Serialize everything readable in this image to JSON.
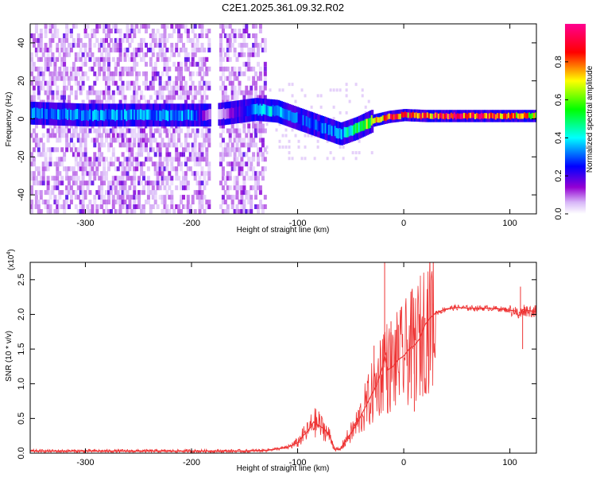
{
  "title": "C2E1.2025.361.09.32.R02",
  "chart_data": [
    {
      "type": "heatmap",
      "name": "spectrogram",
      "xlabel": "Height of straight line (km)",
      "ylabel": "Frequency (Hz)",
      "xlim": [
        -352,
        125
      ],
      "ylim": [
        -50,
        50
      ],
      "xticks": [
        -300,
        -200,
        -100,
        0,
        100
      ],
      "yticks": [
        -40,
        -20,
        0,
        20,
        40
      ],
      "xtick_labels": [
        "-300",
        "-200",
        "-100",
        "0",
        "100"
      ],
      "ytick_labels": [
        "-40",
        "-20",
        "0",
        "20",
        "40"
      ],
      "colorbar": {
        "label": "Normalized spectral amplitude",
        "range": [
          0,
          1
        ],
        "ticks": [
          0.0,
          0.2,
          0.4,
          0.6,
          0.8
        ],
        "tick_labels": [
          "0.0",
          "0.2",
          "0.4",
          "0.6",
          "0.8"
        ],
        "colors": [
          "#ffffff",
          "#9400d3",
          "#0000ff",
          "#00ffff",
          "#00ff00",
          "#ffff00",
          "#ff0000",
          "#ff00a0"
        ]
      },
      "ridge": {
        "x": [
          -352,
          -300,
          -250,
          -200,
          -180,
          -140,
          -120,
          -100,
          -80,
          -60,
          -45,
          -30,
          -15,
          0,
          20,
          60,
          100,
          125
        ],
        "frequency": [
          3,
          2,
          2,
          2,
          2,
          5,
          4,
          0,
          -4,
          -8,
          -5,
          -1,
          1,
          2,
          1.5,
          1.5,
          1.5,
          1.5
        ],
        "amplitude": [
          0.35,
          0.35,
          0.35,
          0.35,
          0.0,
          0.35,
          0.4,
          0.3,
          0.3,
          0.35,
          0.5,
          0.7,
          0.85,
          0.85,
          0.85,
          0.9,
          0.8,
          0.7
        ]
      },
      "noise_region_x": [
        -352,
        -130
      ],
      "gap_x": [
        -183,
        -175
      ]
    },
    {
      "type": "line",
      "name": "snr",
      "xlabel": "Height of straight line (km)",
      "ylabel": "SNR (10 * v/v)",
      "multiplier_label": "(x10",
      "multiplier_exponent": "4",
      "xlim": [
        -352,
        125
      ],
      "ylim": [
        0,
        27500
      ],
      "xticks": [
        -300,
        -200,
        -100,
        0,
        100
      ],
      "yticks": [
        0,
        5000,
        10000,
        15000,
        20000,
        25000
      ],
      "xtick_labels": [
        "-300",
        "-200",
        "-100",
        "0",
        "100"
      ],
      "ytick_labels": [
        "0.0",
        "0.5",
        "1.0",
        "1.5",
        "2.0",
        "2.5"
      ],
      "color": "#ee3333",
      "series": [
        {
          "name": "SNR",
          "x": [
            -352,
            -300,
            -250,
            -200,
            -150,
            -130,
            -110,
            -100,
            -95,
            -90,
            -85,
            -80,
            -75,
            -70,
            -65,
            -60,
            -55,
            -50,
            -45,
            -40,
            -35,
            -30,
            -25,
            -20,
            -18,
            -15,
            -10,
            -5,
            0,
            5,
            10,
            15,
            20,
            25,
            30,
            40,
            50,
            60,
            70,
            80,
            90,
            100,
            105,
            108,
            110,
            112,
            115,
            120,
            125
          ],
          "y": [
            300,
            300,
            300,
            300,
            300,
            400,
            800,
            1500,
            2500,
            3200,
            4500,
            4000,
            3500,
            2500,
            600,
            500,
            1800,
            2800,
            4000,
            5500,
            7000,
            8500,
            10000,
            12500,
            14000,
            12000,
            12500,
            13500,
            14000,
            15000,
            15500,
            16500,
            18500,
            19500,
            20200,
            20800,
            21000,
            20900,
            20900,
            20900,
            20800,
            20600,
            20500,
            19800,
            20000,
            20700,
            20600,
            20500,
            20400
          ]
        }
      ],
      "spikes": [
        {
          "x": -18,
          "y": 27500
        },
        {
          "x": -80,
          "y": 6000
        },
        {
          "x": -28,
          "y": 15500
        },
        {
          "x": -12,
          "y": 19000
        },
        {
          "x": -5,
          "y": 18500
        },
        {
          "x": 10,
          "y": 6000
        },
        {
          "x": 20,
          "y": 19500
        },
        {
          "x": 110,
          "y": 24000
        },
        {
          "x": 112,
          "y": 15000
        }
      ]
    }
  ]
}
